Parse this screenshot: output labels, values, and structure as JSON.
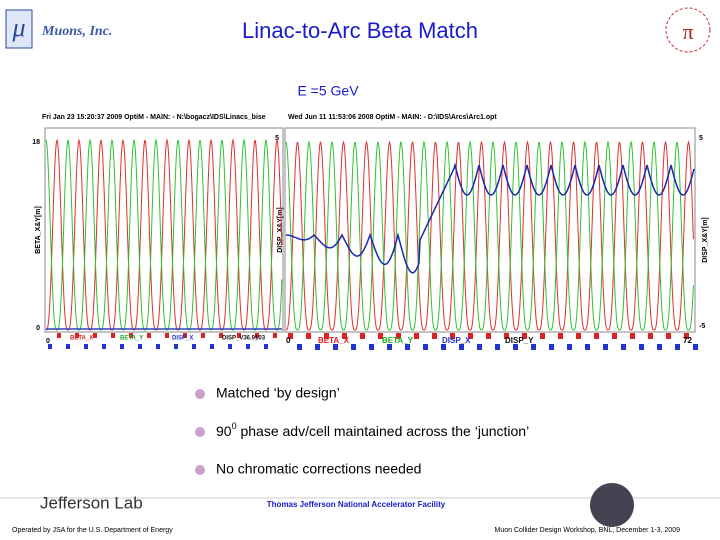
{
  "header": {
    "logo_text": "Muons, Inc.",
    "title": "Linac-to-Arc  Beta Match"
  },
  "subtitle": "E =5 GeV",
  "plots": {
    "left": {
      "caption": "Fri Jan 23 15:20:37 2009    OptiM - MAIN: - N:\\bogacz\\IDS\\Linacs_bise",
      "y_label": "BETA_X&Y[m]",
      "y_top": "18",
      "y_bottom": "0",
      "x_start": "0",
      "legend": [
        "BETA_X",
        "BETA_Y",
        "DISP_X",
        "DISP_V36.9103"
      ]
    },
    "right": {
      "caption": "Wed Jun 11 11:53:06 2008    OptiM - MAIN: - D:\\IDS\\Arcs\\Arc1.opt",
      "y_label": "DISP_X&Y[m]",
      "y_right_label": "DISP_X&Y[m]",
      "y_top": "5",
      "y_right_top": "5",
      "y_right_bottom": "-5",
      "x_start": "0",
      "x_end": "72",
      "legend": [
        "BETA_X",
        "BETA_Y",
        "DISP_X",
        "DISP_Y"
      ]
    }
  },
  "bullets": [
    "Matched ‘by design’",
    {
      "main": "90",
      "sup": "0",
      "rest": " phase adv/cell maintained across the ‘junction’"
    },
    "No chromatic corrections needed"
  ],
  "footer": {
    "lab": "Jefferson Lab",
    "facility": "Thomas Jefferson National Accelerator Facility",
    "operated": "Operated by JSA for the U.S. Department of Energy",
    "workshop": "Muon Collider Design Workshop,  BNL,  December 1-3, 2009"
  }
}
